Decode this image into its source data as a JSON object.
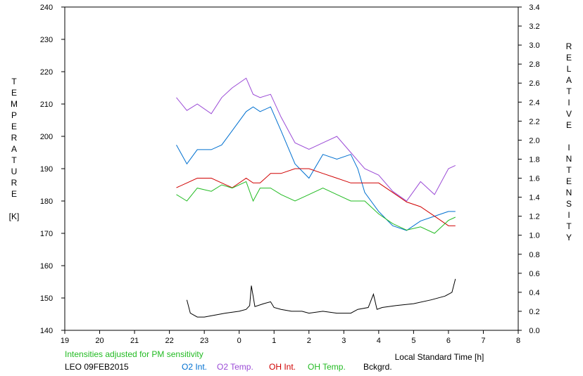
{
  "chart_data": {
    "type": "line",
    "x_ticks": [
      "19",
      "20",
      "21",
      "22",
      "23",
      "0",
      "1",
      "2",
      "3",
      "4",
      "5",
      "6",
      "7",
      "8"
    ],
    "x_label": "Local Standard Time [h]",
    "y_left": {
      "ticks": [
        140,
        150,
        160,
        170,
        180,
        190,
        200,
        210,
        220,
        230,
        240
      ],
      "ylim": [
        140,
        240
      ],
      "label_letters": [
        "T",
        "E",
        "M",
        "P",
        "E",
        "R",
        "A",
        "T",
        "U",
        "R",
        "E"
      ],
      "unit": "[K]"
    },
    "y_right": {
      "ticks": [
        "0.0",
        "0.2",
        "0.4",
        "0.6",
        "0.8",
        "1.0",
        "1.2",
        "1.4",
        "1.6",
        "1.8",
        "2.0",
        "2.2",
        "2.4",
        "2.6",
        "2.8",
        "3.0",
        "3.2",
        "3.4"
      ],
      "ylim": [
        0,
        3.4
      ],
      "label_letters": [
        "R",
        "E",
        "L",
        "A",
        "T",
        "I",
        "V",
        "E",
        " ",
        "I",
        "N",
        "T",
        "E",
        "N",
        "S",
        "I",
        "T",
        "Y"
      ]
    },
    "note": "Intensities adjusted for PM sensitivity",
    "station": "LEO 09FEB2015",
    "series": [
      {
        "name": "O2 Int.",
        "color": "#0070d0",
        "axis": "right",
        "x": [
          22.2,
          22.5,
          22.8,
          23.2,
          23.5,
          23.8,
          24.2,
          24.4,
          24.6,
          24.9,
          25.2,
          25.6,
          26.0,
          26.4,
          26.8,
          27.2,
          27.4,
          27.6,
          28.0,
          28.4,
          28.8,
          29.2,
          29.6,
          30.0,
          30.2
        ],
        "y": [
          1.95,
          1.75,
          1.9,
          1.9,
          1.95,
          2.1,
          2.3,
          2.35,
          2.3,
          2.35,
          2.1,
          1.75,
          1.6,
          1.85,
          1.8,
          1.85,
          1.7,
          1.45,
          1.25,
          1.1,
          1.05,
          1.15,
          1.2,
          1.25,
          1.25
        ]
      },
      {
        "name": "O2 Temp.",
        "color": "#9b4bd6",
        "axis": "left",
        "x": [
          22.2,
          22.5,
          22.8,
          23.2,
          23.5,
          23.8,
          24.2,
          24.4,
          24.6,
          24.9,
          25.2,
          25.6,
          26.0,
          26.4,
          26.8,
          27.2,
          27.6,
          28.0,
          28.4,
          28.8,
          29.2,
          29.6,
          30.0,
          30.2
        ],
        "y": [
          212,
          208,
          210,
          207,
          212,
          215,
          218,
          213,
          212,
          213,
          206,
          198,
          196,
          198,
          200,
          195,
          190,
          188,
          183,
          180,
          186,
          182,
          190,
          191
        ]
      },
      {
        "name": "OH Int.",
        "color": "#d00000",
        "axis": "right",
        "x": [
          22.2,
          22.5,
          22.8,
          23.2,
          23.5,
          23.8,
          24.2,
          24.4,
          24.6,
          24.9,
          25.2,
          25.6,
          26.0,
          26.4,
          26.8,
          27.2,
          27.6,
          28.0,
          28.4,
          28.8,
          29.2,
          29.6,
          30.0,
          30.2
        ],
        "y": [
          1.5,
          1.55,
          1.6,
          1.6,
          1.55,
          1.5,
          1.6,
          1.55,
          1.55,
          1.65,
          1.65,
          1.7,
          1.7,
          1.65,
          1.6,
          1.55,
          1.55,
          1.55,
          1.45,
          1.35,
          1.3,
          1.2,
          1.1,
          1.1
        ]
      },
      {
        "name": "OH Temp.",
        "color": "#22bb22",
        "axis": "left",
        "x": [
          22.2,
          22.5,
          22.8,
          23.2,
          23.5,
          23.8,
          24.2,
          24.4,
          24.6,
          24.9,
          25.2,
          25.6,
          26.0,
          26.4,
          26.8,
          27.2,
          27.6,
          28.0,
          28.4,
          28.8,
          29.2,
          29.6,
          30.0,
          30.2
        ],
        "y": [
          182,
          180,
          184,
          183,
          185,
          184,
          186,
          180,
          184,
          184,
          182,
          180,
          182,
          184,
          182,
          180,
          180,
          176,
          173,
          171,
          172,
          170,
          174,
          175
        ]
      },
      {
        "name": "Bckgrd.",
        "color": "#000000",
        "axis": "right",
        "x": [
          22.5,
          22.6,
          22.8,
          23.0,
          23.3,
          23.6,
          24.0,
          24.2,
          24.3,
          24.35,
          24.45,
          24.7,
          24.9,
          25.0,
          25.2,
          25.5,
          25.8,
          26.0,
          26.4,
          26.8,
          27.2,
          27.4,
          27.7,
          27.85,
          27.95,
          28.1,
          28.5,
          29.0,
          29.5,
          29.9,
          30.1,
          30.2
        ],
        "y": [
          0.32,
          0.18,
          0.14,
          0.14,
          0.16,
          0.18,
          0.2,
          0.22,
          0.26,
          0.47,
          0.25,
          0.28,
          0.3,
          0.24,
          0.22,
          0.2,
          0.2,
          0.18,
          0.2,
          0.18,
          0.18,
          0.22,
          0.24,
          0.38,
          0.22,
          0.24,
          0.26,
          0.28,
          0.32,
          0.36,
          0.4,
          0.54
        ]
      }
    ]
  }
}
